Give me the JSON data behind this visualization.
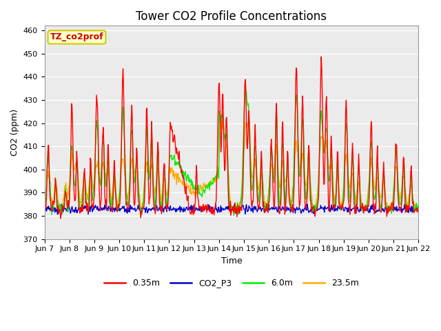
{
  "title": "Tower CO2 Profile Concentrations",
  "xlabel": "Time",
  "ylabel": "CO2 (ppm)",
  "ylim": [
    370,
    462
  ],
  "yticks": [
    370,
    380,
    390,
    400,
    410,
    420,
    430,
    440,
    450,
    460
  ],
  "xtick_labels": [
    "Jun 7",
    "Jun 8",
    "Jun 9",
    "Jun 10",
    "Jun 11",
    "Jun 12",
    "Jun 13",
    "Jun 14",
    "Jun 15",
    "Jun 16",
    "Jun 17",
    "Jun 18",
    "Jun 19",
    "Jun 20",
    "Jun 21",
    "Jun 22"
  ],
  "annotation_text": "TZ_co2prof",
  "annotation_facecolor": "#ffffcc",
  "annotation_edgecolor": "#cccc00",
  "annotation_textcolor": "#cc0000",
  "series_colors": [
    "#ff0000",
    "#0000cc",
    "#00ee00",
    "#ffaa00"
  ],
  "series_labels": [
    "0.35m",
    "CO2_P3",
    "6.0m",
    "23.5m"
  ],
  "plot_bg_color": "#ebebeb",
  "title_fontsize": 12,
  "axis_fontsize": 9,
  "legend_fontsize": 9,
  "linewidth": 1.0
}
